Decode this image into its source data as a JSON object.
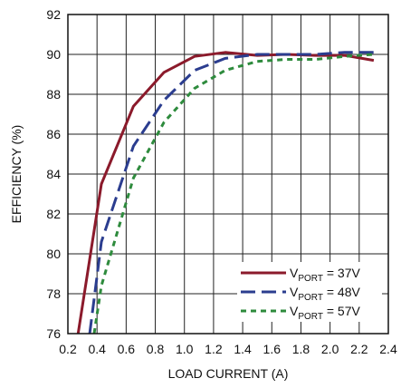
{
  "chart_data": {
    "type": "line",
    "title": "",
    "xlabel": "LOAD CURRENT (A)",
    "ylabel": "EFFICIENCY (%)",
    "xlim": [
      0.2,
      2.4
    ],
    "ylim": [
      76,
      92
    ],
    "xticks": [
      "0.2",
      "0.4",
      "0.6",
      "0.8",
      "1.0",
      "1.2",
      "1.4",
      "1.6",
      "1.8",
      "2.0",
      "2.2",
      "2.4"
    ],
    "yticks": [
      "76",
      "78",
      "80",
      "82",
      "84",
      "86",
      "88",
      "90",
      "92"
    ],
    "x_grid_values": [
      0.2,
      0.4,
      0.6,
      0.8,
      1.0,
      1.2,
      1.4,
      1.6,
      1.8,
      2.0,
      2.2,
      2.4
    ],
    "y_grid_values": [
      76,
      78,
      80,
      82,
      84,
      86,
      88,
      90,
      92
    ],
    "grid": true,
    "legend_placement": "bottom-right",
    "series": [
      {
        "name_main": "V",
        "name_sub": "PORT",
        "name_suffix": " = 37V",
        "color": "#8b1a2b",
        "dash": "solid",
        "x": [
          0.27,
          0.43,
          0.65,
          0.86,
          1.07,
          1.28,
          1.5,
          1.7,
          1.9,
          2.1,
          2.3
        ],
        "y": [
          76.0,
          83.5,
          87.4,
          89.1,
          89.9,
          90.1,
          89.95,
          90.0,
          89.95,
          89.95,
          89.7
        ]
      },
      {
        "name_main": "V",
        "name_sub": "PORT",
        "name_suffix": " = 48V",
        "color": "#2b3d8f",
        "dash": "longdash",
        "x": [
          0.35,
          0.43,
          0.65,
          0.86,
          1.07,
          1.28,
          1.5,
          1.7,
          1.9,
          2.1,
          2.3
        ],
        "y": [
          76.0,
          80.6,
          85.4,
          87.7,
          89.2,
          89.8,
          90.0,
          90.0,
          90.0,
          90.1,
          90.1
        ]
      },
      {
        "name_main": "V",
        "name_sub": "PORT",
        "name_suffix": " = 57V",
        "color": "#2e8b3d",
        "dash": "shortdash",
        "x": [
          0.38,
          0.43,
          0.65,
          0.86,
          1.07,
          1.28,
          1.5,
          1.7,
          1.9,
          2.1,
          2.3
        ],
        "y": [
          76.0,
          78.4,
          83.8,
          86.6,
          88.3,
          89.2,
          89.65,
          89.75,
          89.75,
          89.9,
          90.0
        ]
      }
    ]
  }
}
